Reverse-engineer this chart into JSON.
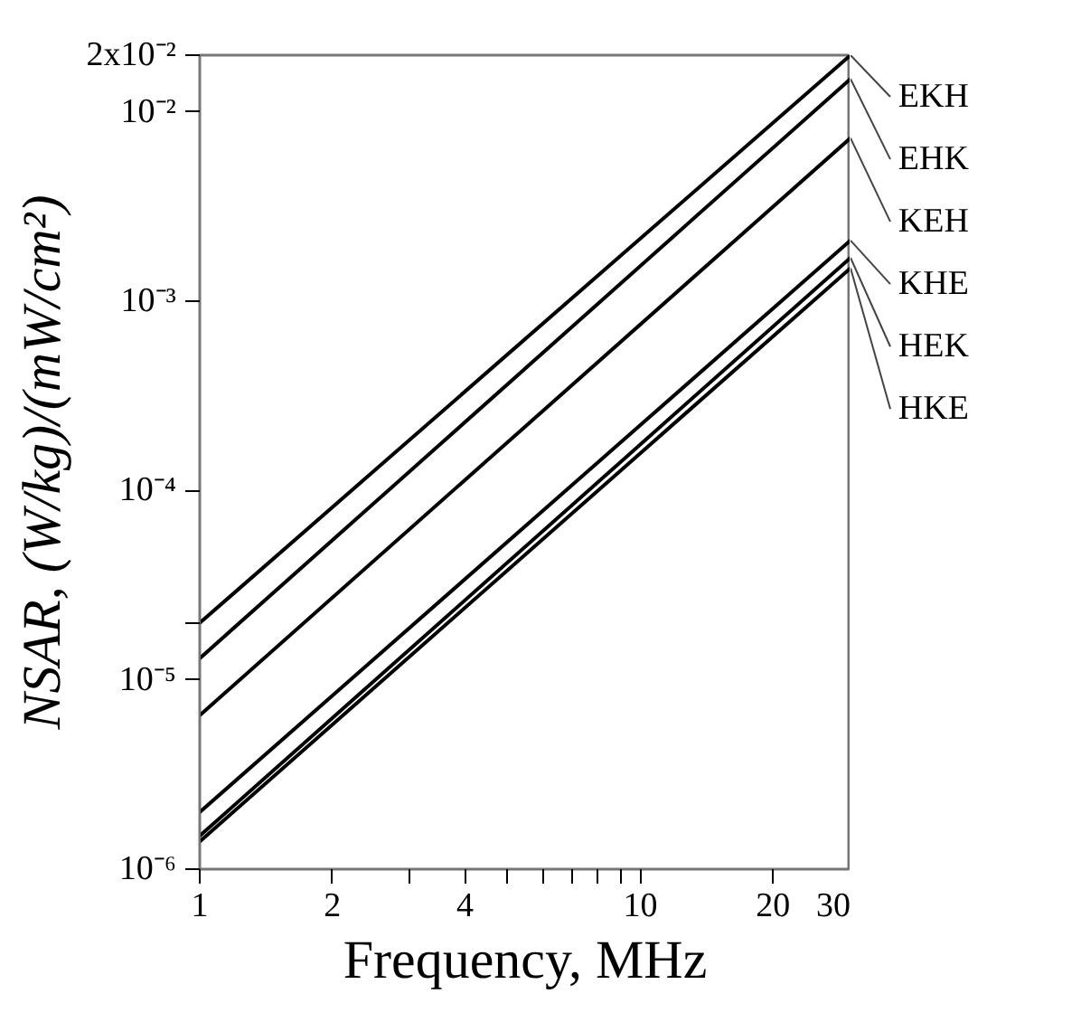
{
  "chart_data": {
    "type": "line",
    "xlabel": "Frequency, MHz",
    "ylabel": "NSAR, (W/kg)/(mW/cm²)",
    "x": [
      1,
      30
    ],
    "log": "xy",
    "grid": false,
    "legend": false,
    "marker": "none",
    "line_style": "solid",
    "xlim": [
      1,
      30
    ],
    "ylim": [
      1e-06,
      0.02
    ],
    "xticks": [
      1,
      2,
      {
        "value": 3,
        "label": null
      },
      4,
      {
        "value": 5,
        "label": null
      },
      {
        "value": 6,
        "label": null
      },
      {
        "value": 7,
        "label": null
      },
      {
        "value": 8,
        "label": null
      },
      {
        "value": 9,
        "label": null
      },
      10,
      20,
      30
    ],
    "yticks": [
      {
        "value": 1e-06,
        "label": "10⁻⁶"
      },
      {
        "value": 1e-05,
        "label": "10⁻⁵"
      },
      {
        "value": 2e-05,
        "label": null
      },
      {
        "value": 0.0001,
        "label": "10⁻⁴"
      },
      {
        "value": 0.001,
        "label": "10⁻³"
      },
      {
        "value": 0.01,
        "label": "10⁻²"
      },
      {
        "value": 0.02,
        "label": "2x10⁻²"
      }
    ],
    "series": [
      {
        "name": "EKH",
        "color": "#000000",
        "values": [
          2e-05,
          0.02
        ]
      },
      {
        "name": "EHK",
        "color": "#000000",
        "values": [
          1.3e-05,
          0.015
        ]
      },
      {
        "name": "KEH",
        "color": "#000000",
        "values": [
          6.5e-06,
          0.0073
        ]
      },
      {
        "name": "KHE",
        "color": "#000000",
        "values": [
          2e-06,
          0.0021
        ]
      },
      {
        "name": "HEK",
        "color": "#000000",
        "values": [
          1.5e-06,
          0.0017
        ]
      },
      {
        "name": "HKE",
        "color": "#000000",
        "values": [
          1.4e-06,
          0.0015
        ]
      }
    ]
  }
}
